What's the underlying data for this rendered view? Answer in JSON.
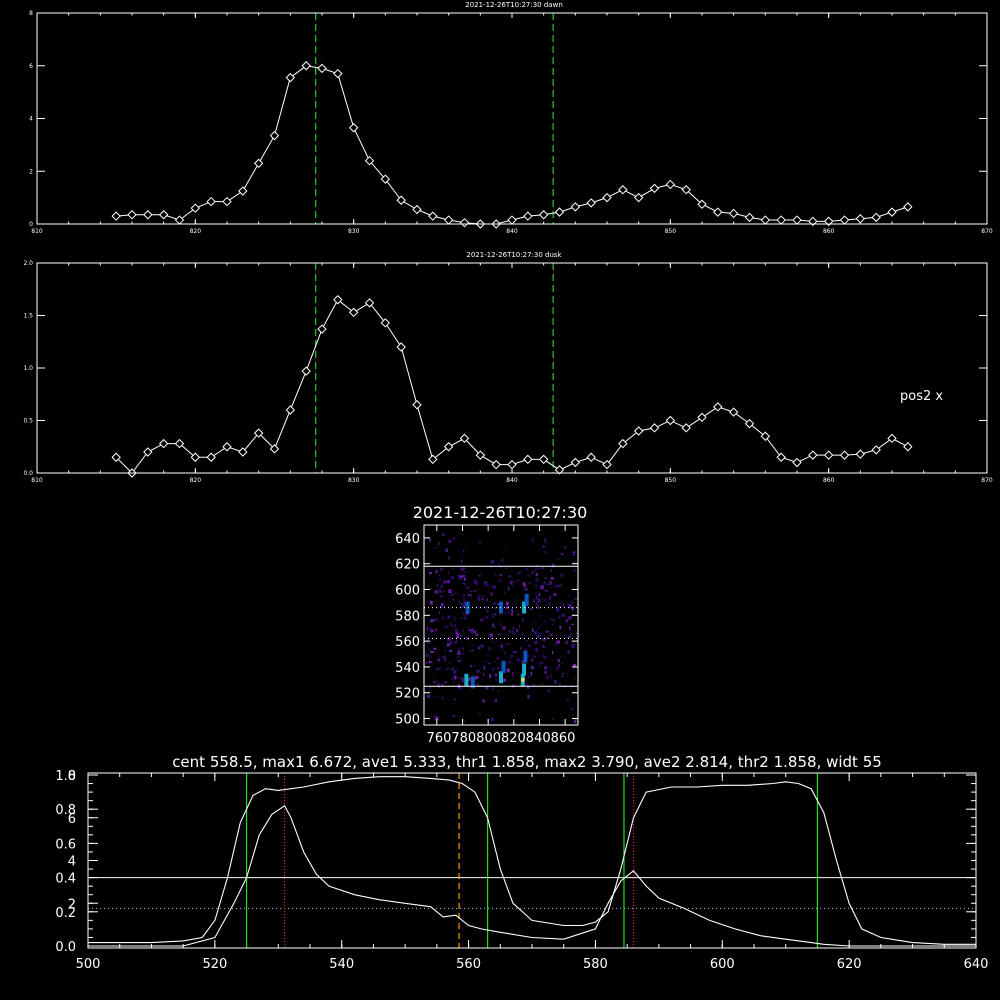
{
  "chart_data": [
    {
      "type": "line",
      "title": "2021-12-26T10:27:30 dawn",
      "xlim": [
        810,
        870
      ],
      "ylim": [
        0,
        8
      ],
      "xticks": [
        "810",
        "820",
        "830",
        "840",
        "850",
        "860",
        "870"
      ],
      "yticks": [
        "0",
        "2",
        "4",
        "6",
        "8"
      ],
      "vlines": [
        827.6,
        842.6
      ],
      "series": [
        {
          "x": [
            815,
            816,
            817,
            818,
            819,
            820,
            821,
            822,
            823,
            824,
            825,
            826,
            827,
            828,
            829,
            830,
            831,
            832,
            833,
            834,
            835,
            836,
            837,
            838,
            839,
            840,
            841,
            842,
            843,
            844,
            845,
            846,
            847,
            848,
            849,
            850,
            851,
            852,
            853,
            854,
            855,
            856,
            857,
            858,
            859,
            860,
            861,
            862,
            863,
            864,
            865
          ],
          "values": [
            0.3,
            0.35,
            0.35,
            0.35,
            0.15,
            0.6,
            0.85,
            0.85,
            1.25,
            2.3,
            3.35,
            5.55,
            6.0,
            5.9,
            5.7,
            3.65,
            2.4,
            1.7,
            0.9,
            0.55,
            0.3,
            0.15,
            0.05,
            0.0,
            0.0,
            0.15,
            0.3,
            0.35,
            0.45,
            0.65,
            0.8,
            1.0,
            1.3,
            1.0,
            1.35,
            1.5,
            1.3,
            0.75,
            0.45,
            0.4,
            0.25,
            0.15,
            0.15,
            0.15,
            0.1,
            0.1,
            0.15,
            0.2,
            0.25,
            0.45,
            0.65
          ]
        }
      ]
    },
    {
      "type": "line",
      "title": "2021-12-26T10:27:30 dusk",
      "xlim": [
        810,
        870
      ],
      "ylim": [
        0,
        2.0
      ],
      "xticks": [
        "810",
        "820",
        "830",
        "840",
        "850",
        "860",
        "870"
      ],
      "yticks": [
        "0.0",
        "0.5",
        "1.0",
        "1.5",
        "2.0"
      ],
      "vlines": [
        827.6,
        842.6
      ],
      "annotation": "pos2 x",
      "series": [
        {
          "x": [
            815,
            816,
            817,
            818,
            819,
            820,
            821,
            822,
            823,
            824,
            825,
            826,
            827,
            828,
            829,
            830,
            831,
            832,
            833,
            834,
            835,
            836,
            837,
            838,
            839,
            840,
            841,
            842,
            843,
            844,
            845,
            846,
            847,
            848,
            849,
            850,
            851,
            852,
            853,
            854,
            855,
            856,
            857,
            858,
            859,
            860,
            861,
            862,
            863,
            864,
            865
          ],
          "values": [
            0.15,
            0.0,
            0.2,
            0.28,
            0.28,
            0.15,
            0.15,
            0.25,
            0.2,
            0.38,
            0.23,
            0.6,
            0.97,
            1.37,
            1.65,
            1.53,
            1.62,
            1.43,
            1.2,
            0.65,
            0.13,
            0.25,
            0.33,
            0.17,
            0.08,
            0.08,
            0.13,
            0.13,
            0.03,
            0.1,
            0.15,
            0.08,
            0.28,
            0.4,
            0.43,
            0.5,
            0.43,
            0.53,
            0.63,
            0.58,
            0.47,
            0.35,
            0.15,
            0.1,
            0.17,
            0.17,
            0.17,
            0.18,
            0.22,
            0.33,
            0.25
          ]
        }
      ]
    },
    {
      "type": "heatmap",
      "title": "2021-12-26T10:27:30",
      "xlim": [
        750,
        870
      ],
      "ylim": [
        495,
        650
      ],
      "xtick_text": "760780800820840860",
      "yticks": [
        "500",
        "520",
        "540",
        "560",
        "580",
        "600",
        "620",
        "640"
      ],
      "hlines_solid": [
        525,
        618
      ],
      "hlines_dotted": [
        562,
        586
      ],
      "colors": [
        "#3a0a8a",
        "#5a1aa8",
        "#7a2ac0",
        "#2a1a70",
        "#1060d0",
        "#20c0e0"
      ],
      "hotspots": [
        {
          "x": 783,
          "y": 530,
          "v": 0.8
        },
        {
          "x": 788,
          "y": 528,
          "v": 0.6
        },
        {
          "x": 810,
          "y": 532,
          "v": 0.9
        },
        {
          "x": 812,
          "y": 540,
          "v": 0.7
        },
        {
          "x": 827,
          "y": 530,
          "v": 1.0
        },
        {
          "x": 828,
          "y": 538,
          "v": 0.8
        },
        {
          "x": 829,
          "y": 548,
          "v": 0.6
        },
        {
          "x": 784,
          "y": 586,
          "v": 0.6
        },
        {
          "x": 810,
          "y": 586,
          "v": 0.5
        },
        {
          "x": 828,
          "y": 586,
          "v": 0.9
        },
        {
          "x": 830,
          "y": 592,
          "v": 0.5
        }
      ]
    },
    {
      "type": "line",
      "title": "cent 558.5, max1 6.672, ave1 5.333, thr1 1.858, max2 3.790, ave2 2.814, thr2 1.858, widt 55",
      "xlim": [
        500,
        640
      ],
      "xticks": [
        "500",
        "520",
        "540",
        "560",
        "580",
        "600",
        "620",
        "640"
      ],
      "yticks_left_a": [
        "0.0",
        "0.2",
        "0.4",
        "0.6",
        "0.8",
        "1.0"
      ],
      "yticks_left_b": [
        "2",
        "4",
        "6",
        "8"
      ],
      "green_vlines": [
        525,
        563,
        584.5,
        615
      ],
      "red_vlines": [
        531,
        586
      ],
      "orange_vline": 558.5,
      "hline_solid": 0.4,
      "hline_dotted": 0.22,
      "series": [
        {
          "x": [
            500,
            505,
            510,
            515,
            518,
            520,
            522,
            524,
            526,
            528,
            530,
            534,
            538,
            542,
            546,
            550,
            554,
            557,
            559,
            561,
            563,
            565,
            567,
            570,
            575,
            578,
            580,
            582,
            584,
            586,
            588,
            592,
            596,
            600,
            604,
            608,
            610,
            612,
            614,
            616,
            618,
            620,
            622,
            625,
            630,
            635,
            640
          ],
          "values": [
            0.02,
            0.02,
            0.02,
            0.03,
            0.05,
            0.15,
            0.4,
            0.72,
            0.88,
            0.92,
            0.91,
            0.93,
            0.96,
            0.98,
            0.99,
            0.99,
            0.98,
            0.97,
            0.95,
            0.9,
            0.75,
            0.45,
            0.25,
            0.15,
            0.12,
            0.12,
            0.14,
            0.2,
            0.45,
            0.75,
            0.9,
            0.93,
            0.93,
            0.94,
            0.94,
            0.95,
            0.96,
            0.95,
            0.92,
            0.78,
            0.5,
            0.25,
            0.1,
            0.05,
            0.02,
            0.01,
            0.01
          ]
        },
        {
          "x": [
            500,
            505,
            510,
            515,
            520,
            523,
            525,
            527,
            529,
            531,
            532,
            534,
            536,
            538,
            542,
            546,
            550,
            554,
            556,
            558,
            560,
            562,
            565,
            570,
            575,
            580,
            582,
            584,
            586,
            588,
            590,
            594,
            598,
            602,
            606,
            610,
            614,
            616,
            620,
            625,
            630,
            640
          ],
          "values": [
            0.0,
            0.0,
            0.0,
            0.0,
            0.05,
            0.25,
            0.4,
            0.65,
            0.77,
            0.82,
            0.75,
            0.55,
            0.42,
            0.35,
            0.3,
            0.27,
            0.25,
            0.23,
            0.17,
            0.18,
            0.12,
            0.1,
            0.08,
            0.05,
            0.04,
            0.1,
            0.25,
            0.38,
            0.44,
            0.35,
            0.28,
            0.22,
            0.15,
            0.1,
            0.06,
            0.04,
            0.02,
            0.01,
            0.0,
            0.0,
            0.0,
            0.0
          ]
        }
      ]
    }
  ]
}
